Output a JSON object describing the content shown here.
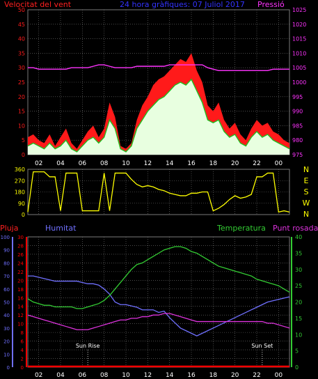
{
  "title": "24 hora gràfiques: 07 Juliol 2017",
  "colors": {
    "background": "#000000",
    "grid": "#7a7a7a",
    "wind_speed": "#ff1a1a",
    "wind_avg": "#1fbf1f",
    "wind_fill": "#e8ffe0",
    "pressure": "#ff33ff",
    "direction": "#ffff00",
    "humidity": "#7070ff",
    "temperature": "#33cc33",
    "dewpoint": "#dd33dd",
    "rain": "#ff0000",
    "axis_label_dir": "#ffff00"
  },
  "chart_data": [
    {
      "type": "line",
      "panel": "wind_pressure",
      "labels": {
        "left": "Velocitat del vent",
        "center": "24 hora gràfiques: 07 Juliol 2017",
        "right": "Pressió"
      },
      "x_ticks": [
        "02",
        "04",
        "06",
        "08",
        "10",
        "12",
        "14",
        "16",
        "18",
        "20",
        "22",
        "00"
      ],
      "x_range": [
        1,
        25
      ],
      "y_left": {
        "range": [
          0,
          50
        ],
        "ticks": [
          0,
          5,
          10,
          15,
          20,
          25,
          30,
          35,
          40,
          45,
          50
        ]
      },
      "y_right": {
        "range": [
          975,
          1025
        ],
        "ticks": [
          975,
          980,
          985,
          990,
          995,
          1000,
          1005,
          1010,
          1015,
          1020,
          1025
        ]
      },
      "x": [
        1,
        1.5,
        2,
        2.5,
        3,
        3.5,
        4,
        4.5,
        5,
        5.5,
        6,
        6.5,
        7,
        7.5,
        8,
        8.5,
        9,
        9.5,
        10,
        10.5,
        11,
        11.5,
        12,
        12.5,
        13,
        13.5,
        14,
        14.5,
        15,
        15.5,
        16,
        16.5,
        17,
        17.5,
        18,
        18.5,
        19,
        19.5,
        20,
        20.5,
        21,
        21.5,
        22,
        22.5,
        23,
        23.5,
        24,
        24.5,
        25
      ],
      "series": [
        {
          "name": "gust",
          "values": [
            6,
            7,
            5,
            4,
            7,
            3,
            6,
            9,
            4,
            2,
            5,
            8,
            10,
            6,
            9,
            18,
            13,
            3,
            2,
            4,
            12,
            17,
            20,
            24,
            26,
            27,
            29,
            31,
            33,
            32,
            35,
            29,
            25,
            17,
            15,
            18,
            12,
            9,
            11,
            7,
            5,
            9,
            12,
            10,
            11,
            8,
            7,
            5,
            4
          ]
        },
        {
          "name": "average",
          "values": [
            3,
            4,
            3,
            2,
            4,
            2,
            3,
            5,
            2,
            1,
            3,
            5,
            6,
            4,
            6,
            12,
            9,
            2,
            1,
            3,
            9,
            12,
            15,
            17,
            19,
            20,
            22,
            24,
            25,
            24,
            26,
            22,
            18,
            12,
            11,
            12,
            8,
            6,
            7,
            4,
            3,
            6,
            8,
            6,
            7,
            5,
            4,
            3,
            2
          ]
        },
        {
          "name": "pressure",
          "values": [
            1005,
            1005,
            1004.5,
            1004.5,
            1004.5,
            1004.5,
            1004.5,
            1004.5,
            1005,
            1005,
            1005,
            1005,
            1005.5,
            1006,
            1006,
            1005.5,
            1005,
            1005,
            1005,
            1005,
            1005.5,
            1005.5,
            1005.5,
            1005.5,
            1005.5,
            1005.5,
            1006,
            1006,
            1006,
            1006,
            1006,
            1006,
            1006,
            1005,
            1004.5,
            1004,
            1004,
            1004,
            1004,
            1004,
            1004,
            1004,
            1004,
            1004,
            1004,
            1004.5,
            1004.5,
            1004.5,
            1004.5
          ]
        }
      ]
    },
    {
      "type": "line",
      "panel": "wind_direction",
      "x_range": [
        1,
        25
      ],
      "y_range": [
        0,
        360
      ],
      "y_ticks": [
        0,
        90,
        180,
        270,
        360
      ],
      "compass_labels": [
        "N",
        "W",
        "S",
        "E",
        "N"
      ],
      "x": [
        1,
        1.5,
        2,
        2.5,
        3,
        3.5,
        4,
        4.5,
        5,
        5.5,
        6,
        6.5,
        7,
        7.5,
        8,
        8.5,
        9,
        9.5,
        10,
        10.5,
        11,
        11.5,
        12,
        12.5,
        13,
        13.5,
        14,
        14.5,
        15,
        15.5,
        16,
        16.5,
        17,
        17.5,
        18,
        18.5,
        19,
        19.5,
        20,
        20.5,
        21,
        21.5,
        22,
        22.5,
        23,
        23.5,
        24,
        24.5,
        25
      ],
      "values": [
        20,
        340,
        340,
        340,
        300,
        300,
        30,
        330,
        330,
        330,
        30,
        30,
        30,
        30,
        330,
        30,
        330,
        330,
        330,
        280,
        240,
        220,
        230,
        220,
        200,
        190,
        170,
        160,
        150,
        150,
        170,
        170,
        180,
        180,
        30,
        50,
        80,
        120,
        150,
        130,
        140,
        160,
        300,
        300,
        330,
        330,
        20,
        30,
        20
      ]
    },
    {
      "type": "line",
      "panel": "temp_humidity",
      "labels": {
        "rain": "Pluja",
        "humidity": "Humitat",
        "temperature": "Temperatura",
        "dewpoint": "Punt rosada"
      },
      "x_ticks": [
        "02",
        "04",
        "06",
        "08",
        "10",
        "12",
        "14",
        "16",
        "18",
        "20",
        "22",
        "00"
      ],
      "x_range": [
        1,
        25
      ],
      "y_humidity": {
        "range": [
          0,
          100
        ],
        "ticks": [
          0,
          10,
          20,
          30,
          40,
          50,
          60,
          70,
          80,
          90,
          100
        ]
      },
      "y_rain": {
        "range": [
          0,
          30
        ],
        "ticks": [
          0,
          2,
          4,
          6,
          8,
          10,
          12,
          14,
          16,
          18,
          20,
          22,
          24,
          26,
          28,
          30
        ]
      },
      "y_temp": {
        "range": [
          0,
          40
        ],
        "ticks": [
          0,
          5,
          10,
          15,
          20,
          25,
          30,
          35,
          40
        ]
      },
      "annotations": [
        {
          "label": "Sun Rise",
          "x": 6.5
        },
        {
          "label": "Sun Set",
          "x": 22.5
        }
      ],
      "x": [
        1,
        1.5,
        2,
        2.5,
        3,
        3.5,
        4,
        4.5,
        5,
        5.5,
        6,
        6.5,
        7,
        7.5,
        8,
        8.5,
        9,
        9.5,
        10,
        10.5,
        11,
        11.5,
        12,
        12.5,
        13,
        13.5,
        14,
        14.5,
        15,
        15.5,
        16,
        16.5,
        17,
        17.5,
        18,
        18.5,
        19,
        19.5,
        20,
        20.5,
        21,
        21.5,
        22,
        22.5,
        23,
        23.5,
        24,
        24.5,
        25
      ],
      "series": [
        {
          "name": "Humitat",
          "values": [
            70,
            70,
            69,
            68,
            67,
            66,
            66,
            66,
            66,
            66,
            65,
            64,
            64,
            63,
            60,
            56,
            50,
            48,
            48,
            47,
            46,
            44,
            44,
            44,
            42,
            43,
            38,
            34,
            30,
            28,
            26,
            24,
            26,
            28,
            30,
            32,
            34,
            36,
            38,
            40,
            42,
            44,
            46,
            48,
            50,
            51,
            52,
            53,
            54
          ]
        },
        {
          "name": "Temperatura",
          "values": [
            21,
            20,
            19.5,
            19,
            19,
            18.5,
            18.5,
            18.5,
            18.5,
            18,
            18,
            18.5,
            19,
            19.5,
            20.5,
            22,
            24,
            26,
            28,
            30,
            31.5,
            32,
            33,
            34,
            35,
            36,
            36.5,
            37,
            37,
            36.5,
            35.5,
            35,
            34,
            33,
            32,
            31,
            30.5,
            30,
            29.5,
            29,
            28.5,
            28,
            27,
            26.5,
            26,
            25.5,
            25,
            24,
            23
          ]
        },
        {
          "name": "Punt rosada",
          "values": [
            16,
            15.5,
            15,
            14.5,
            14,
            13.5,
            13,
            12.5,
            12,
            11.5,
            11.5,
            11.5,
            12,
            12.5,
            13,
            13.5,
            14,
            14.5,
            14.5,
            15,
            15,
            15.5,
            15.5,
            16,
            16,
            16.5,
            16.5,
            16,
            15.5,
            15,
            14.5,
            14,
            14,
            14,
            14,
            14,
            14,
            14,
            14,
            14,
            14,
            14,
            14,
            14,
            13.5,
            13.5,
            13,
            12.5,
            12
          ]
        },
        {
          "name": "Pluja",
          "values": [
            0,
            0,
            0,
            0,
            0,
            0,
            0,
            0,
            0,
            0,
            0,
            0,
            0,
            0,
            0,
            0,
            0,
            0,
            0,
            0,
            0,
            0,
            0,
            0,
            0,
            0,
            0,
            0,
            0,
            0,
            0,
            0,
            0,
            0,
            0,
            0,
            0,
            0,
            0,
            0,
            0,
            0,
            0,
            0,
            0,
            0,
            0,
            0,
            0
          ]
        }
      ]
    }
  ]
}
